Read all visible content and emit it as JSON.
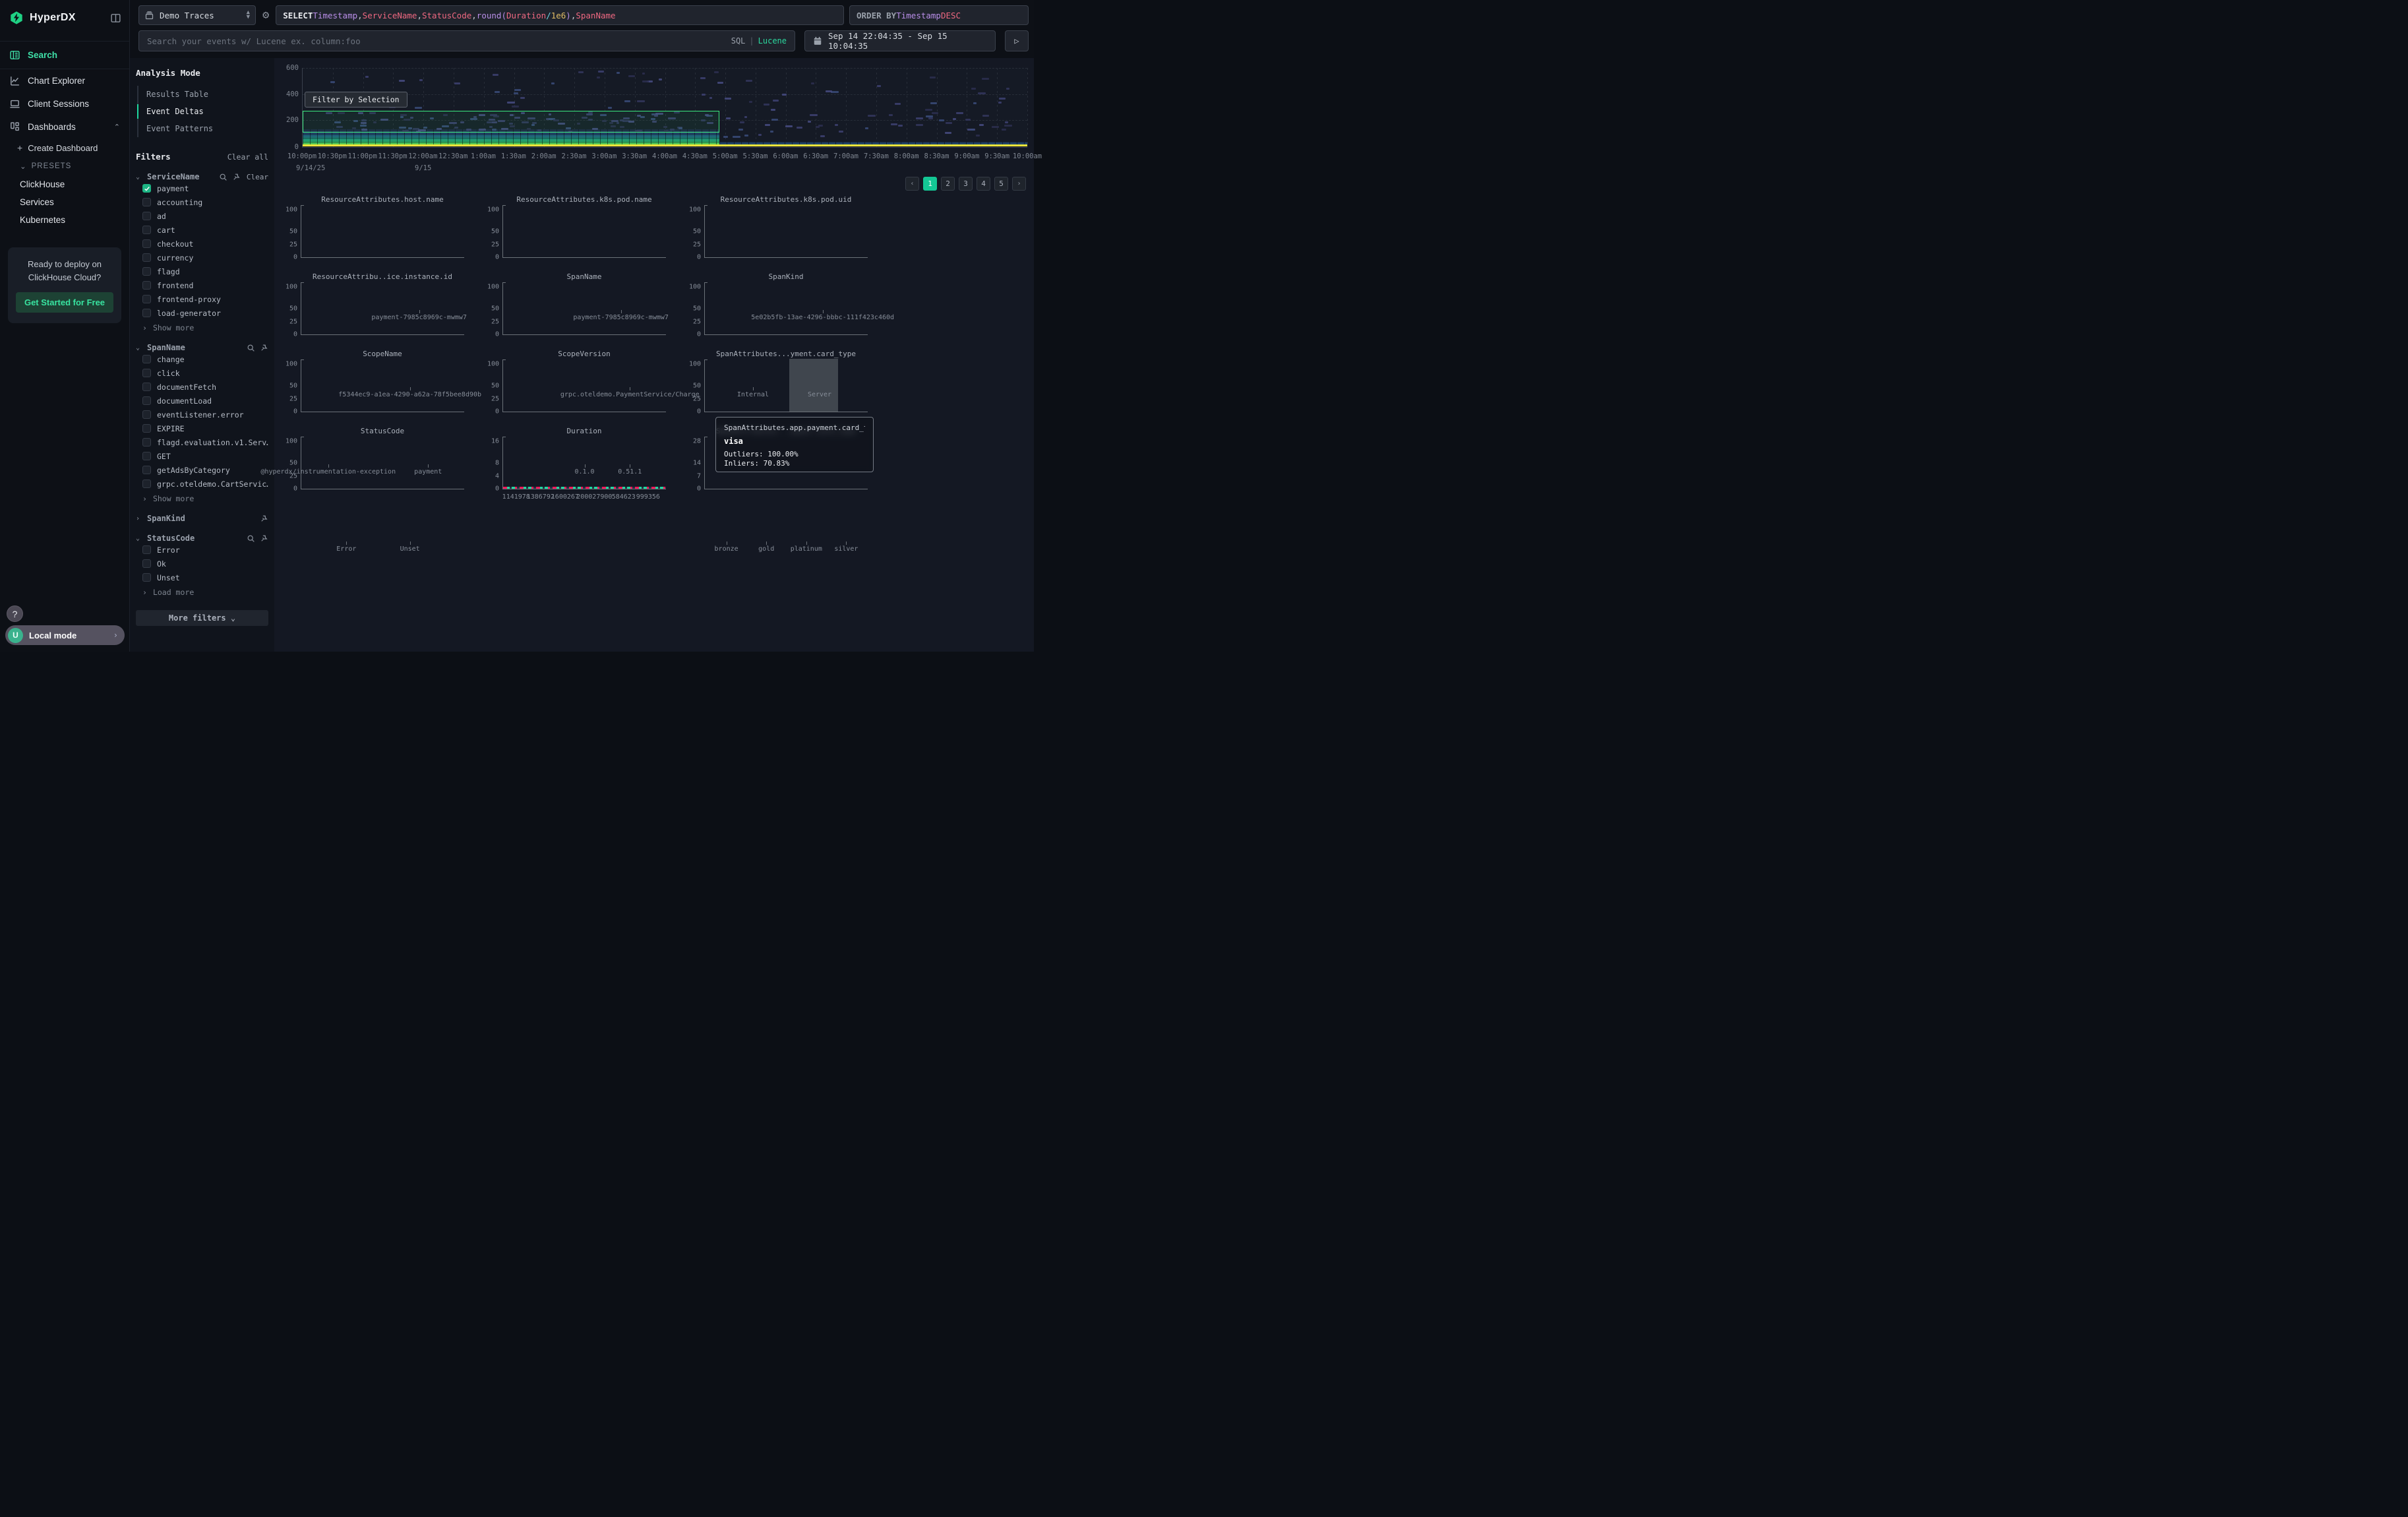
{
  "app": {
    "title": "HyperDX"
  },
  "colors": {
    "accent": "#1fd9a0",
    "outlier": "#f5175a",
    "inlier": "#17d6a0",
    "selection": "#3ce97f",
    "page_active": "#14c795",
    "checkbox_checked": "#1db584"
  },
  "sidebar": {
    "logo": "HyperDX",
    "nav": [
      {
        "id": "search",
        "label": "Search",
        "active": true
      },
      {
        "id": "chart-explorer",
        "label": "Chart Explorer",
        "active": false
      },
      {
        "id": "client-sessions",
        "label": "Client Sessions",
        "active": false
      },
      {
        "id": "dashboards",
        "label": "Dashboards",
        "active": false,
        "expanded": true
      }
    ],
    "create_dashboard": "Create Dashboard",
    "presets_label": "PRESETS",
    "presets": [
      "ClickHouse",
      "Services",
      "Kubernetes"
    ],
    "promo": {
      "line1": "Ready to deploy on",
      "line2": "ClickHouse Cloud?",
      "cta": "Get Started for Free"
    },
    "help": "?",
    "user": {
      "initial": "U",
      "label": "Local mode"
    }
  },
  "topbar": {
    "source": "Demo Traces",
    "sql_tokens": [
      [
        "SELECT ",
        "kw"
      ],
      [
        "Timestamp",
        "purple"
      ],
      [
        ", ",
        "plain"
      ],
      [
        "ServiceName",
        "rose"
      ],
      [
        ", ",
        "plain"
      ],
      [
        "StatusCode",
        "rose"
      ],
      [
        ", ",
        "plain"
      ],
      [
        "round",
        "purple"
      ],
      [
        "(",
        "purple"
      ],
      [
        "Duration",
        "rose"
      ],
      [
        " / ",
        "cyan"
      ],
      [
        "1e6",
        "yellow"
      ],
      [
        ")",
        "purple"
      ],
      [
        ", ",
        "plain"
      ],
      [
        "SpanName",
        "rose"
      ]
    ],
    "order_tokens": [
      [
        "ORDER BY ",
        "gkw"
      ],
      [
        "Timestamp ",
        "purple"
      ],
      [
        "DESC",
        "rose"
      ]
    ],
    "search_placeholder": "Search your events w/ Lucene ex. column:foo",
    "lang": {
      "sql": "SQL",
      "divider": "|",
      "lucene": "Lucene"
    },
    "date_range": "Sep 14 22:04:35 - Sep 15 10:04:35",
    "run_label": "▷"
  },
  "analysis_mode": {
    "title": "Analysis Mode",
    "options": [
      {
        "label": "Results Table",
        "active": false
      },
      {
        "label": "Event Deltas",
        "active": true
      },
      {
        "label": "Event Patterns",
        "active": false
      }
    ]
  },
  "filters": {
    "title": "Filters",
    "clear_all": "Clear all",
    "groups": [
      {
        "name": "ServiceName",
        "expanded": true,
        "search": true,
        "pin": true,
        "clear": "Clear",
        "items": [
          {
            "label": "payment",
            "checked": true
          },
          {
            "label": "accounting",
            "checked": false
          },
          {
            "label": "ad",
            "checked": false
          },
          {
            "label": "cart",
            "checked": false
          },
          {
            "label": "checkout",
            "checked": false
          },
          {
            "label": "currency",
            "checked": false
          },
          {
            "label": "flagd",
            "checked": false
          },
          {
            "label": "frontend",
            "checked": false
          },
          {
            "label": "frontend-proxy",
            "checked": false
          },
          {
            "label": "load-generator",
            "checked": false
          }
        ],
        "more": "Show more"
      },
      {
        "name": "SpanName",
        "expanded": true,
        "search": true,
        "pin": true,
        "items": [
          {
            "label": "change",
            "checked": false
          },
          {
            "label": "click",
            "checked": false
          },
          {
            "label": "documentFetch",
            "checked": false
          },
          {
            "label": "documentLoad",
            "checked": false
          },
          {
            "label": "eventListener.error",
            "checked": false
          },
          {
            "label": "EXPIRE",
            "checked": false
          },
          {
            "label": "flagd.evaluation.v1.Serv…",
            "checked": false
          },
          {
            "label": "GET",
            "checked": false
          },
          {
            "label": "getAdsByCategory",
            "checked": false
          },
          {
            "label": "grpc.oteldemo.CartServic…",
            "checked": false
          }
        ],
        "more": "Show more"
      },
      {
        "name": "SpanKind",
        "expanded": false,
        "search": false,
        "pin": true,
        "items": []
      },
      {
        "name": "StatusCode",
        "expanded": true,
        "search": true,
        "pin": true,
        "items": [
          {
            "label": "Error",
            "checked": false
          },
          {
            "label": "Ok",
            "checked": false
          },
          {
            "label": "Unset",
            "checked": false
          }
        ],
        "more": "Load more"
      }
    ],
    "more_filters": "More filters"
  },
  "heatmap": {
    "filter_button": "Filter by Selection",
    "ylabels": [
      {
        "text": "600",
        "top_pct": 0
      },
      {
        "text": "400",
        "top_pct": 33
      },
      {
        "text": "200",
        "top_pct": 66
      },
      {
        "text": "0",
        "top_pct": 100
      }
    ],
    "xlabels": [
      "10:00pm",
      "10:30pm",
      "11:00pm",
      "11:30pm",
      "12:00am",
      "12:30am",
      "1:00am",
      "1:30am",
      "2:00am",
      "2:30am",
      "3:00am",
      "3:30am",
      "4:00am",
      "4:30am",
      "5:00am",
      "5:30am",
      "6:00am",
      "6:30am",
      "7:00am",
      "7:30am",
      "8:00am",
      "8:30am",
      "9:00am",
      "9:30am",
      "10:00am"
    ],
    "date_labels": [
      {
        "text": "9/14/25",
        "x_pct": 1.2
      },
      {
        "text": "9/15",
        "x_pct": 16.7
      }
    ],
    "selection": {
      "y_value_range": [
        105,
        270
      ],
      "x_span": "10:00pm to ~4:55am"
    }
  },
  "pagination": {
    "prev": "‹",
    "pages": [
      "1",
      "2",
      "3",
      "4",
      "5"
    ],
    "active": "1",
    "next": "›"
  },
  "tooltip": {
    "header": "SpanAttributes.app.payment.card_type",
    "value": "visa",
    "outliers": "Outliers: 100.00%",
    "inliers": "Inliers: 70.83%"
  },
  "chart_data": {
    "type": "bar",
    "note": "12 delta mini-charts; series o=Outliers(red) i=Inliers(green); v=value est %, h=bar height % of plot",
    "yticks_default": [
      [
        "100",
        91
      ],
      [
        "50",
        50
      ],
      [
        "25",
        24
      ],
      [
        "0",
        0
      ]
    ],
    "charts": [
      {
        "title": "ResourceAttributes.host.name",
        "groups": [
          {
            "bars": [
              {
                "s": "o",
                "v": 100,
                "h": 100
              },
              {
                "s": "i",
                "v": 57,
                "h": 56
              }
            ]
          },
          {
            "label": "payment-7985c8969c-mwmw7",
            "bars": [
              {
                "s": "i",
                "v": 42,
                "h": 42
              }
            ]
          }
        ]
      },
      {
        "title": "ResourceAttributes.k8s.pod.name",
        "groups": [
          {
            "bars": [
              {
                "s": "o",
                "v": 100,
                "h": 100
              },
              {
                "s": "i",
                "v": 57,
                "h": 56
              }
            ]
          },
          {
            "label": "payment-7985c8969c-mwmw7",
            "bars": [
              {
                "s": "i",
                "v": 42,
                "h": 42
              }
            ]
          }
        ]
      },
      {
        "title": "ResourceAttributes.k8s.pod.uid",
        "groups": [
          {
            "bars": [
              {
                "s": "o",
                "v": 100,
                "h": 100
              },
              {
                "s": "i",
                "v": 57,
                "h": 56
              }
            ]
          },
          {
            "label": "5e02b5fb-13ae-4296-bbbc-111f423c460d",
            "bars": [
              {
                "s": "i",
                "v": 42,
                "h": 42
              }
            ]
          }
        ]
      },
      {
        "title": "ResourceAttribu..ice.instance.id",
        "groups": [
          {
            "bars": [
              {
                "s": "i",
                "v": 42,
                "h": 42
              }
            ]
          },
          {
            "label": "f5344ec9-a1ea-4290-a62a-78f5bee8d90b",
            "bars": [
              {
                "s": "o",
                "v": 100,
                "h": 100
              },
              {
                "s": "i",
                "v": 57,
                "h": 56
              }
            ]
          }
        ]
      },
      {
        "title": "SpanName",
        "groups": [
          {
            "bars": [
              {
                "s": "i",
                "v": 17,
                "h": 16
              }
            ]
          },
          {
            "bars": [
              {
                "s": "o",
                "v": 11,
                "h": 11
              },
              {
                "s": "i",
                "v": 37,
                "h": 36
              }
            ]
          },
          {
            "label": "grpc.oteldemo.PaymentService/Charge",
            "bars": [
              {
                "s": "o",
                "v": 97,
                "h": 89
              },
              {
                "s": "i",
                "v": 51,
                "h": 51
              }
            ]
          }
        ]
      },
      {
        "title": "SpanKind",
        "groups": [
          {
            "label": "Internal",
            "bars": [
              {
                "s": "o",
                "v": 11,
                "h": 11
              },
              {
                "s": "i",
                "v": 46,
                "h": 46
              }
            ]
          },
          {
            "label": "Server",
            "bars": [
              {
                "s": "o",
                "v": 97,
                "h": 89
              },
              {
                "s": "i",
                "v": 51,
                "h": 51
              }
            ]
          }
        ]
      },
      {
        "title": "ScopeName",
        "groups": [
          {
            "label": "@hyperdx/instrumentation-exception",
            "bars": [
              {
                "s": "i",
                "v": 15,
                "h": 14
              }
            ]
          },
          {
            "bars": [
              {
                "s": "o",
                "v": 97,
                "h": 89
              },
              {
                "s": "i",
                "v": 51,
                "h": 51
              }
            ]
          },
          {
            "label": "payment",
            "bars": [
              {
                "s": "o",
                "v": 10,
                "h": 10
              },
              {
                "s": "i",
                "v": 32,
                "h": 31
              }
            ]
          }
        ]
      },
      {
        "title": "ScopeVersion",
        "groups": [
          {
            "bars": [
              {
                "s": "o",
                "v": 10,
                "h": 10
              },
              {
                "s": "i",
                "v": 32,
                "h": 31
              }
            ]
          },
          {
            "label": "0.1.0",
            "bars": [
              {
                "s": "i",
                "v": 15,
                "h": 14
              }
            ]
          },
          {
            "label": "0.51.1",
            "bars": [
              {
                "s": "o",
                "v": 97,
                "h": 89
              },
              {
                "s": "i",
                "v": 51,
                "h": 51
              }
            ]
          }
        ]
      },
      {
        "title": "SpanAttributes...yment.card_type",
        "groups": [
          {
            "bars": [
              {
                "s": "i",
                "v": 28,
                "h": 27
              }
            ]
          },
          {
            "hover": true,
            "bars": [
              {
                "s": "o",
                "v": 100,
                "h": 100
              },
              {
                "s": "i",
                "v": 70.83,
                "h": 74
              }
            ]
          }
        ]
      },
      {
        "title": "StatusCode",
        "groups": [
          {
            "label": "Error",
            "bars": [
              {
                "s": "i",
                "v": 15,
                "h": 14
              }
            ]
          },
          {
            "label": "Unset",
            "bars": [
              {
                "s": "o",
                "v": 100,
                "h": 100
              },
              {
                "s": "i",
                "v": 94,
                "h": 86
              }
            ]
          }
        ]
      },
      {
        "title": "Duration",
        "strip": true,
        "yticks": [
          [
            "16",
            91
          ],
          [
            "8",
            50
          ],
          [
            "4",
            24
          ],
          [
            "0",
            0
          ]
        ],
        "xlabels": [
          "1141978",
          "1386792",
          "1600267",
          "200027900",
          "584623",
          "999356"
        ]
      },
      {
        "title": "SpanAttributes...yment.card_type",
        "hidden_by_tooltip": true,
        "yticks": [
          [
            "28",
            91
          ],
          [
            "14",
            50
          ],
          [
            "7",
            24
          ],
          [
            "0",
            0
          ]
        ],
        "groups": [
          {
            "label": "bronze",
            "bars": [
              {
                "s": "o",
                "v": 26,
                "h": 80
              },
              {
                "s": "i",
                "v": 22,
                "h": 70
              }
            ]
          },
          {
            "label": "gold",
            "bars": [
              {
                "s": "o",
                "v": 25,
                "h": 78
              },
              {
                "s": "i",
                "v": 23,
                "h": 72
              }
            ]
          },
          {
            "label": "platinum",
            "bars": [
              {
                "s": "o",
                "v": 27,
                "h": 82
              },
              {
                "s": "i",
                "v": 24,
                "h": 74
              }
            ]
          },
          {
            "label": "silver",
            "bars": [
              {
                "s": "o",
                "v": 25,
                "h": 79
              },
              {
                "s": "i",
                "v": 22,
                "h": 71
              }
            ]
          }
        ]
      }
    ],
    "heatmap": {
      "type": "heatmap",
      "x_range": "9/14/25 10:00pm - 9/15 10:00am",
      "ylim": [
        0,
        600
      ],
      "description": "dense viridis band (values 0-100) until ~4:55am, yellow baseline across full range, sparse purple outliers 100-600"
    }
  }
}
